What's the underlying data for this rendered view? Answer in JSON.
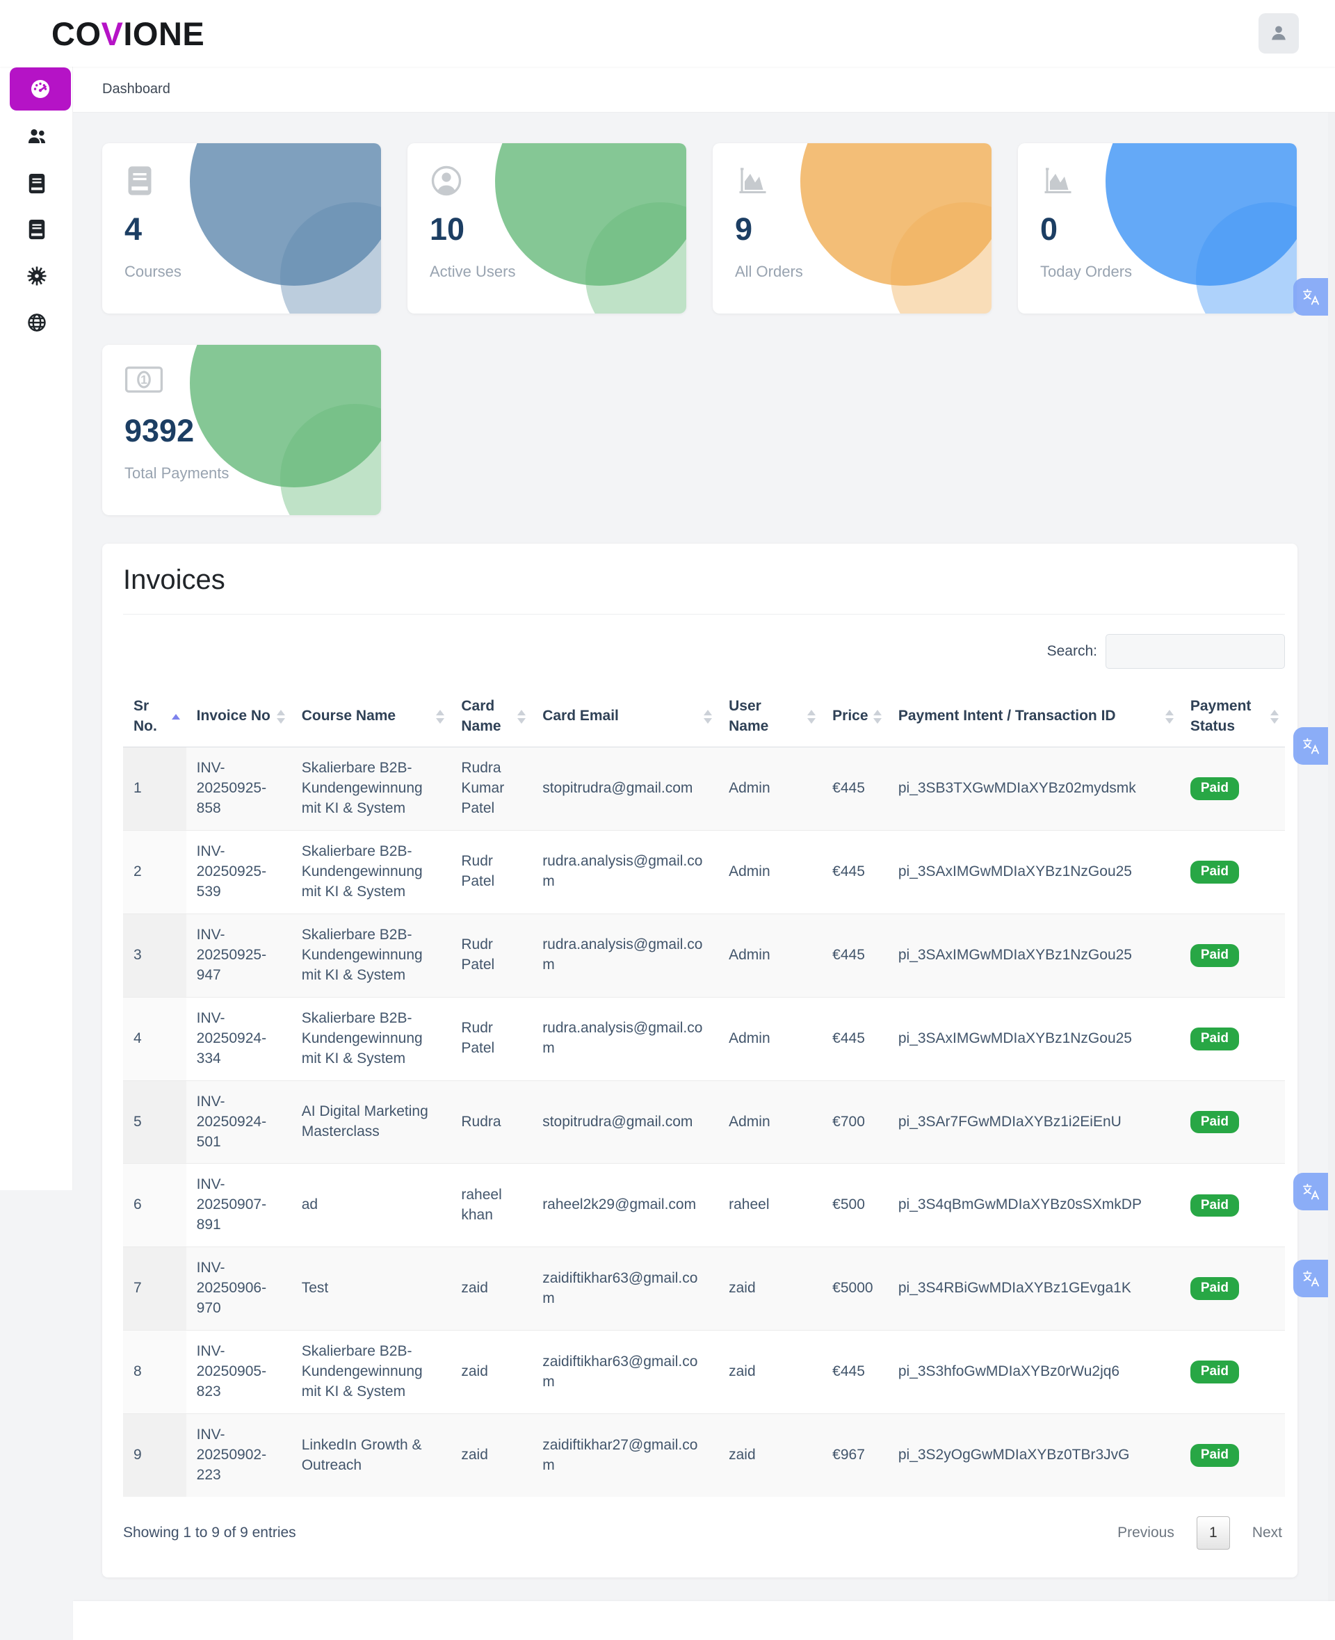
{
  "brand": {
    "prefix": "CO",
    "accent_letter": "V",
    "suffix": "IONE"
  },
  "header": {
    "breadcrumb": "Dashboard"
  },
  "sidebar": {
    "items": [
      {
        "id": "dashboard",
        "icon": "speedometer-icon",
        "active": true
      },
      {
        "id": "users",
        "icon": "users-icon",
        "active": false
      },
      {
        "id": "courses",
        "icon": "journal-icon",
        "active": false
      },
      {
        "id": "orders",
        "icon": "journal-icon",
        "active": false
      },
      {
        "id": "settings",
        "icon": "gear-icon",
        "active": false
      },
      {
        "id": "site",
        "icon": "globe-icon",
        "active": false
      }
    ]
  },
  "stats": {
    "cards": [
      {
        "value": "4",
        "label": "Courses",
        "icon": "journal-icon",
        "accent": "#5f88ae"
      },
      {
        "value": "10",
        "label": "Active Users",
        "icon": "person-circle-icon",
        "accent": "#66b97a"
      },
      {
        "value": "9",
        "label": "All Orders",
        "icon": "chart-icon",
        "accent": "#f0ae55"
      },
      {
        "value": "0",
        "label": "Today Orders",
        "icon": "chart-icon",
        "accent": "#3d93f5"
      },
      {
        "value": "9392",
        "label": "Total Payments",
        "icon": "cash-icon",
        "accent": "#66b97a"
      }
    ]
  },
  "invoices": {
    "title": "Invoices",
    "search_label": "Search:",
    "search_value": "",
    "columns": [
      "Sr No.",
      "Invoice No",
      "Course Name",
      "Card Name",
      "Card Email",
      "User Name",
      "Price",
      "Payment Intent / Transaction ID",
      "Payment Status"
    ],
    "rows": [
      {
        "sr": "1",
        "invoice_no": "INV-20250925-858",
        "course_name": "Skalierbare B2B-Kundengewinnung mit KI & System",
        "card_name": "Rudra Kumar Patel",
        "card_email": "stopitrudra@gmail.com",
        "user_name": "Admin",
        "price": "€445",
        "transaction_id": "pi_3SB3TXGwMDIaXYBz02mydsmk",
        "status": "Paid"
      },
      {
        "sr": "2",
        "invoice_no": "INV-20250925-539",
        "course_name": "Skalierbare B2B-Kundengewinnung mit KI & System",
        "card_name": "Rudr Patel",
        "card_email": "rudra.analysis@gmail.com",
        "user_name": "Admin",
        "price": "€445",
        "transaction_id": "pi_3SAxIMGwMDIaXYBz1NzGou25",
        "status": "Paid"
      },
      {
        "sr": "3",
        "invoice_no": "INV-20250925-947",
        "course_name": "Skalierbare B2B-Kundengewinnung mit KI & System",
        "card_name": "Rudr Patel",
        "card_email": "rudra.analysis@gmail.com",
        "user_name": "Admin",
        "price": "€445",
        "transaction_id": "pi_3SAxIMGwMDIaXYBz1NzGou25",
        "status": "Paid"
      },
      {
        "sr": "4",
        "invoice_no": "INV-20250924-334",
        "course_name": "Skalierbare B2B-Kundengewinnung mit KI & System",
        "card_name": "Rudr Patel",
        "card_email": "rudra.analysis@gmail.com",
        "user_name": "Admin",
        "price": "€445",
        "transaction_id": "pi_3SAxIMGwMDIaXYBz1NzGou25",
        "status": "Paid"
      },
      {
        "sr": "5",
        "invoice_no": "INV-20250924-501",
        "course_name": "AI Digital Marketing Masterclass",
        "card_name": "Rudra",
        "card_email": "stopitrudra@gmail.com",
        "user_name": "Admin",
        "price": "€700",
        "transaction_id": "pi_3SAr7FGwMDIaXYBz1i2EiEnU",
        "status": "Paid"
      },
      {
        "sr": "6",
        "invoice_no": "INV-20250907-891",
        "course_name": "ad",
        "card_name": "raheel khan",
        "card_email": "raheel2k29@gmail.com",
        "user_name": "raheel",
        "price": "€500",
        "transaction_id": "pi_3S4qBmGwMDIaXYBz0sSXmkDP",
        "status": "Paid"
      },
      {
        "sr": "7",
        "invoice_no": "INV-20250906-970",
        "course_name": "Test",
        "card_name": "zaid",
        "card_email": "zaidiftikhar63@gmail.com",
        "user_name": "zaid",
        "price": "€5000",
        "transaction_id": "pi_3S4RBiGwMDIaXYBz1GEvga1K",
        "status": "Paid"
      },
      {
        "sr": "8",
        "invoice_no": "INV-20250905-823",
        "course_name": "Skalierbare B2B-Kundengewinnung mit KI & System",
        "card_name": "zaid",
        "card_email": "zaidiftikhar63@gmail.com",
        "user_name": "zaid",
        "price": "€445",
        "transaction_id": "pi_3S3hfoGwMDIaXYBz0rWu2jq6",
        "status": "Paid"
      },
      {
        "sr": "9",
        "invoice_no": "INV-20250902-223",
        "course_name": "LinkedIn Growth & Outreach",
        "card_name": "zaid",
        "card_email": "zaidiftikhar27@gmail.com",
        "user_name": "zaid",
        "price": "€967",
        "transaction_id": "pi_3S2yOgGwMDIaXYBz0TBr3JvG",
        "status": "Paid"
      }
    ],
    "footer": {
      "showing": "Showing 1 to 9 of 9 entries",
      "previous": "Previous",
      "page": "1",
      "next": "Next"
    }
  },
  "colors": {
    "accent": "#b513c6",
    "badge_paid": "#28a745",
    "sort_active_arrow": "#7d82ec",
    "stat_number": "#1c3e63",
    "translate_widget": "#82a6f6"
  }
}
